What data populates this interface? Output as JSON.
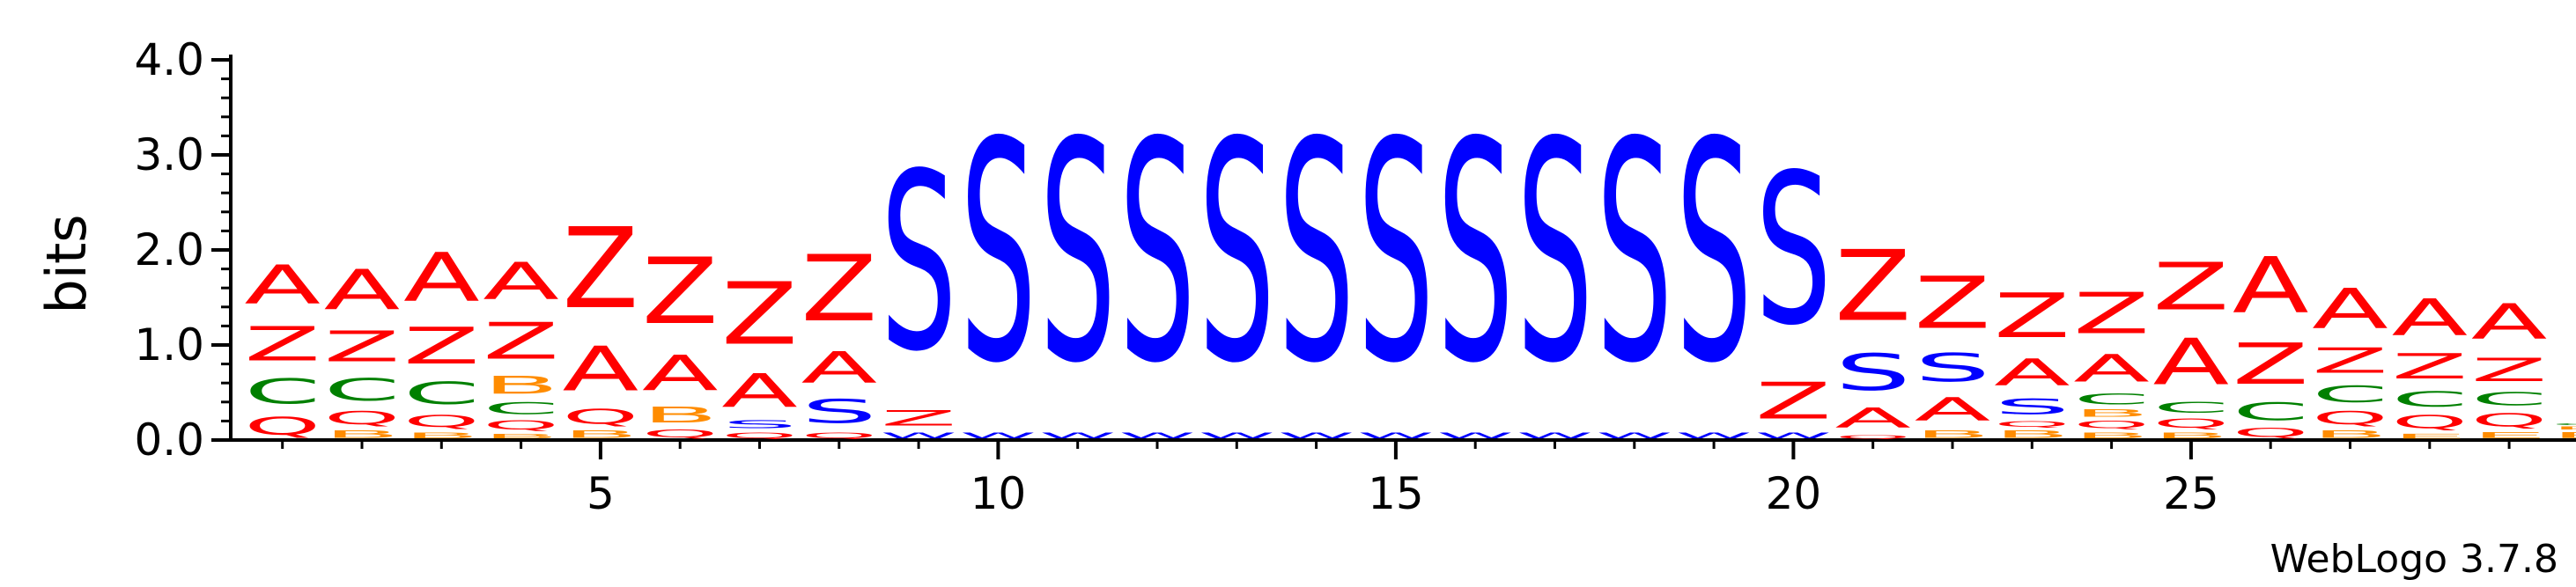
{
  "chart_data": {
    "type": "sequence-logo",
    "ylabel": "bits",
    "ylim": [
      0,
      4.0
    ],
    "y_ticks": [
      "0.0",
      "1.0",
      "2.0",
      "3.0",
      "4.0"
    ],
    "x_ticks": [
      "5",
      "10",
      "15",
      "20",
      "25"
    ],
    "footer": "WebLogo 3.7.8",
    "colors": {
      "A": "#ff0000",
      "Z": "#ff0000",
      "S": "#0000ff",
      "W": "#0000ff",
      "C": "#008000",
      "B": "#ff8c00",
      "Q": "#ff0000"
    },
    "positions": [
      {
        "pos": 1,
        "stack": [
          [
            "Q",
            0.3
          ],
          [
            "C",
            0.42
          ],
          [
            "Z",
            0.58
          ],
          [
            "A",
            0.66
          ]
        ]
      },
      {
        "pos": 2,
        "stack": [
          [
            "B",
            0.12
          ],
          [
            "Q",
            0.22
          ],
          [
            "C",
            0.38
          ],
          [
            "Z",
            0.52
          ],
          [
            "A",
            0.68
          ]
        ]
      },
      {
        "pos": 3,
        "stack": [
          [
            "B",
            0.1
          ],
          [
            "Q",
            0.2
          ],
          [
            "C",
            0.38
          ],
          [
            "Z",
            0.62
          ],
          [
            "A",
            0.82
          ]
        ]
      },
      {
        "pos": 4,
        "stack": [
          [
            "B",
            0.08
          ],
          [
            "Q",
            0.15
          ],
          [
            "C",
            0.2
          ],
          [
            "B",
            0.3
          ],
          [
            "Z",
            0.62
          ],
          [
            "A",
            0.63
          ]
        ]
      },
      {
        "pos": 5,
        "stack": [
          [
            "B",
            0.12
          ],
          [
            "Q",
            0.25
          ],
          [
            "A",
            0.75
          ],
          [
            "Z",
            1.36
          ]
        ]
      },
      {
        "pos": 6,
        "stack": [
          [
            "Q",
            0.13
          ],
          [
            "B",
            0.27
          ],
          [
            "A",
            0.6
          ],
          [
            "Z",
            1.12
          ]
        ]
      },
      {
        "pos": 7,
        "stack": [
          [
            "Q",
            0.1
          ],
          [
            "S",
            0.13
          ],
          [
            "A",
            0.57
          ],
          [
            "Z",
            1.05
          ]
        ]
      },
      {
        "pos": 8,
        "stack": [
          [
            "Q",
            0.1
          ],
          [
            "S",
            0.4
          ],
          [
            "A",
            0.53
          ],
          [
            "Z",
            1.12
          ]
        ]
      },
      {
        "pos": 9,
        "stack": [
          [
            "W",
            0.1
          ],
          [
            "Z",
            0.26
          ],
          [
            "S",
            3.0
          ]
        ]
      },
      {
        "pos": 10,
        "stack": [
          [
            "W",
            0.1
          ],
          [
            "S",
            3.72
          ]
        ]
      },
      {
        "pos": 11,
        "stack": [
          [
            "W",
            0.1
          ],
          [
            "S",
            3.72
          ]
        ]
      },
      {
        "pos": 12,
        "stack": [
          [
            "W",
            0.1
          ],
          [
            "S",
            3.72
          ]
        ]
      },
      {
        "pos": 13,
        "stack": [
          [
            "W",
            0.1
          ],
          [
            "S",
            3.72
          ]
        ]
      },
      {
        "pos": 14,
        "stack": [
          [
            "W",
            0.1
          ],
          [
            "S",
            3.72
          ]
        ]
      },
      {
        "pos": 15,
        "stack": [
          [
            "W",
            0.1
          ],
          [
            "S",
            3.72
          ]
        ]
      },
      {
        "pos": 16,
        "stack": [
          [
            "W",
            0.1
          ],
          [
            "S",
            3.72
          ]
        ]
      },
      {
        "pos": 17,
        "stack": [
          [
            "W",
            0.1
          ],
          [
            "S",
            3.72
          ]
        ]
      },
      {
        "pos": 18,
        "stack": [
          [
            "W",
            0.1
          ],
          [
            "S",
            3.72
          ]
        ]
      },
      {
        "pos": 19,
        "stack": [
          [
            "W",
            0.1
          ],
          [
            "S",
            3.72
          ]
        ]
      },
      {
        "pos": 20,
        "stack": [
          [
            "W",
            0.1
          ],
          [
            "Z",
            0.62
          ],
          [
            "S",
            2.55
          ]
        ]
      },
      {
        "pos": 21,
        "stack": [
          [
            "Q",
            0.06
          ],
          [
            "A",
            0.34
          ],
          [
            "S",
            0.62
          ],
          [
            "Z",
            1.2
          ]
        ]
      },
      {
        "pos": 22,
        "stack": [
          [
            "B",
            0.12
          ],
          [
            "A",
            0.4
          ],
          [
            "S",
            0.48
          ],
          [
            "Z",
            0.88
          ]
        ]
      },
      {
        "pos": 23,
        "stack": [
          [
            "B",
            0.12
          ],
          [
            "Q",
            0.1
          ],
          [
            "S",
            0.26
          ],
          [
            "A",
            0.45
          ],
          [
            "Z",
            0.75
          ]
        ]
      },
      {
        "pos": 24,
        "stack": [
          [
            "B",
            0.1
          ],
          [
            "Q",
            0.12
          ],
          [
            "B",
            0.12
          ],
          [
            "C",
            0.18
          ],
          [
            "A",
            0.46
          ],
          [
            "Z",
            0.7
          ]
        ]
      },
      {
        "pos": 25,
        "stack": [
          [
            "B",
            0.1
          ],
          [
            "Q",
            0.15
          ],
          [
            "C",
            0.18
          ],
          [
            "A",
            0.78
          ],
          [
            "Z",
            0.8
          ]
        ]
      },
      {
        "pos": 26,
        "stack": [
          [
            "Q",
            0.15
          ],
          [
            "C",
            0.3
          ],
          [
            "Z",
            0.7
          ],
          [
            "A",
            0.95
          ]
        ]
      },
      {
        "pos": 27,
        "stack": [
          [
            "B",
            0.12
          ],
          [
            "Q",
            0.22
          ],
          [
            "C",
            0.28
          ],
          [
            "Z",
            0.42
          ],
          [
            "A",
            0.68
          ]
        ]
      },
      {
        "pos": 28,
        "stack": [
          [
            "E",
            0.08
          ],
          [
            "Q",
            0.22
          ],
          [
            "C",
            0.26
          ],
          [
            "Z",
            0.42
          ],
          [
            "A",
            0.62
          ]
        ]
      },
      {
        "pos": 29,
        "stack": [
          [
            "E",
            0.1
          ],
          [
            "Q",
            0.22
          ],
          [
            "C",
            0.22
          ],
          [
            "Z",
            0.4
          ],
          [
            "A",
            0.6
          ]
        ]
      },
      {
        "pos": 30,
        "stack": [
          [
            "E",
            0.1
          ],
          [
            "B",
            0.05
          ],
          [
            "C",
            0.03
          ]
        ]
      }
    ]
  }
}
